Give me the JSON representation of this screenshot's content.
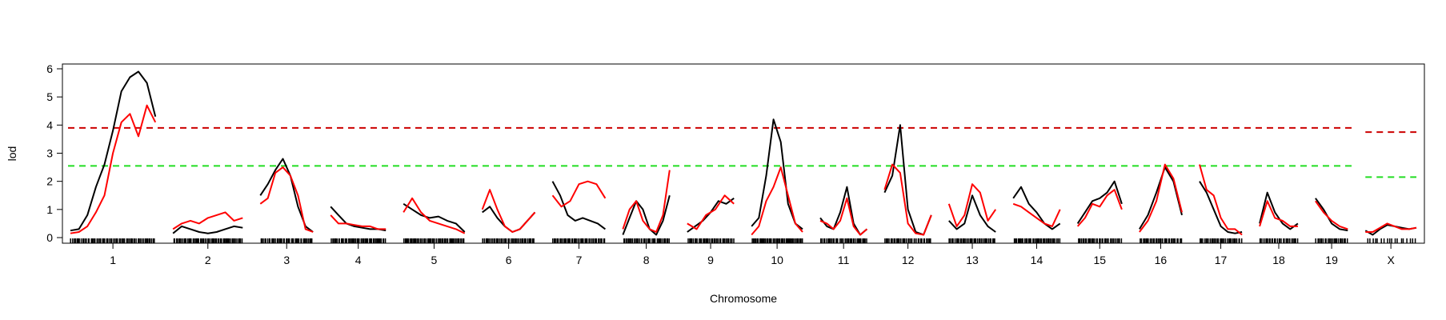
{
  "chart_data": {
    "type": "line",
    "title": "",
    "xlabel": "Chromosome",
    "ylabel": "lod",
    "ylim": [
      0,
      6
    ],
    "yticks": [
      0,
      1,
      2,
      3,
      4,
      5,
      6
    ],
    "ytick_labels": [
      "0",
      "1",
      "2",
      "3",
      "4",
      "5",
      "6"
    ],
    "grid": false,
    "legend": "none",
    "chromosomes": [
      {
        "label": "1",
        "length": 1.0
      },
      {
        "label": "2",
        "length": 0.82
      },
      {
        "label": "3",
        "length": 0.62
      },
      {
        "label": "4",
        "length": 0.65
      },
      {
        "label": "5",
        "length": 0.72
      },
      {
        "label": "6",
        "length": 0.62
      },
      {
        "label": "7",
        "length": 0.62
      },
      {
        "label": "8",
        "length": 0.55
      },
      {
        "label": "9",
        "length": 0.55
      },
      {
        "label": "10",
        "length": 0.6
      },
      {
        "label": "11",
        "length": 0.55
      },
      {
        "label": "12",
        "length": 0.55
      },
      {
        "label": "13",
        "length": 0.55
      },
      {
        "label": "14",
        "length": 0.55
      },
      {
        "label": "15",
        "length": 0.52
      },
      {
        "label": "16",
        "length": 0.5
      },
      {
        "label": "17",
        "length": 0.5
      },
      {
        "label": "18",
        "length": 0.45
      },
      {
        "label": "19",
        "length": 0.38
      },
      {
        "label": "X",
        "length": 0.6
      }
    ],
    "series": [
      {
        "name": "black",
        "color": "#000000",
        "values": [
          [
            0.25,
            0.3,
            0.8,
            1.8,
            2.6,
            3.8,
            5.2,
            5.7,
            5.9,
            5.5,
            4.3
          ],
          [
            0.15,
            0.4,
            0.3,
            0.2,
            0.15,
            0.2,
            0.3,
            0.4,
            0.35
          ],
          [
            1.5,
            1.9,
            2.4,
            2.8,
            2.2,
            1.1,
            0.4,
            0.2
          ],
          [
            1.1,
            0.8,
            0.5,
            0.4,
            0.35,
            0.3,
            0.3,
            0.25
          ],
          [
            1.2,
            1.0,
            0.8,
            0.7,
            0.75,
            0.6,
            0.5,
            0.2
          ],
          [
            0.9,
            1.1,
            0.7,
            0.4,
            0.2,
            0.3,
            0.6,
            0.9
          ],
          [
            2.0,
            1.5,
            0.8,
            0.6,
            0.7,
            0.6,
            0.5,
            0.3
          ],
          [
            0.1,
            0.7,
            1.3,
            1.0,
            0.3,
            0.1,
            0.6,
            1.5
          ],
          [
            0.2,
            0.4,
            0.6,
            0.9,
            1.3,
            1.2,
            1.4
          ],
          [
            0.4,
            0.7,
            2.2,
            4.2,
            3.4,
            1.2,
            0.5,
            0.3
          ],
          [
            0.7,
            0.4,
            0.3,
            0.9,
            1.8,
            0.5,
            0.1,
            0.3
          ],
          [
            1.6,
            2.2,
            4.0,
            1.0,
            0.2,
            0.1,
            0.8
          ],
          [
            0.6,
            0.3,
            0.5,
            1.5,
            0.8,
            0.4,
            0.2
          ],
          [
            1.4,
            1.8,
            1.2,
            0.9,
            0.5,
            0.3,
            0.5
          ],
          [
            0.5,
            0.9,
            1.3,
            1.4,
            1.6,
            2.0,
            1.2
          ],
          [
            0.3,
            0.8,
            1.6,
            2.5,
            2.0,
            0.8
          ],
          [
            2.0,
            1.6,
            1.0,
            0.4,
            0.2,
            0.15,
            0.2
          ],
          [
            0.5,
            1.6,
            0.9,
            0.5,
            0.3,
            0.5
          ],
          [
            1.4,
            1.0,
            0.5,
            0.3,
            0.25
          ],
          [
            0.25,
            0.1,
            0.3,
            0.45,
            0.4,
            0.35,
            0.3,
            0.35
          ]
        ]
      },
      {
        "name": "red",
        "color": "#ff0000",
        "values": [
          [
            0.15,
            0.2,
            0.4,
            0.9,
            1.5,
            3.0,
            4.1,
            4.4,
            3.6,
            4.7,
            4.1
          ],
          [
            0.3,
            0.5,
            0.6,
            0.5,
            0.7,
            0.8,
            0.9,
            0.6,
            0.7
          ],
          [
            1.2,
            1.4,
            2.3,
            2.5,
            2.2,
            1.5,
            0.3,
            0.2
          ],
          [
            0.8,
            0.5,
            0.5,
            0.45,
            0.4,
            0.4,
            0.3,
            0.3
          ],
          [
            0.9,
            1.4,
            0.9,
            0.6,
            0.5,
            0.4,
            0.3,
            0.15
          ],
          [
            1.0,
            1.7,
            1.0,
            0.4,
            0.2,
            0.3,
            0.6,
            0.9
          ],
          [
            1.5,
            1.1,
            1.3,
            1.9,
            2.0,
            1.9,
            1.4
          ],
          [
            0.3,
            1.0,
            1.3,
            0.6,
            0.3,
            0.2,
            0.8,
            2.4
          ],
          [
            0.5,
            0.3,
            0.8,
            1.0,
            1.5,
            1.2
          ],
          [
            0.1,
            0.4,
            1.3,
            1.8,
            2.5,
            1.5,
            0.5,
            0.2
          ],
          [
            0.6,
            0.5,
            0.3,
            0.6,
            1.4,
            0.4,
            0.1,
            0.3
          ],
          [
            1.7,
            2.6,
            2.3,
            0.5,
            0.15,
            0.1,
            0.8
          ],
          [
            1.2,
            0.4,
            0.8,
            1.9,
            1.6,
            0.6,
            1.0
          ],
          [
            1.2,
            1.1,
            0.9,
            0.7,
            0.5,
            0.4,
            1.0
          ],
          [
            0.4,
            0.7,
            1.2,
            1.1,
            1.5,
            1.7,
            1.0
          ],
          [
            0.2,
            0.6,
            1.3,
            2.6,
            2.1,
            0.9
          ],
          [
            2.6,
            1.7,
            1.5,
            0.7,
            0.3,
            0.3,
            0.1
          ],
          [
            0.4,
            1.3,
            0.7,
            0.6,
            0.4,
            0.4
          ],
          [
            1.3,
            0.9,
            0.6,
            0.4,
            0.3
          ],
          [
            0.2,
            0.2,
            0.35,
            0.5,
            0.4,
            0.3,
            0.3,
            0.35
          ]
        ]
      }
    ],
    "thresholds": [
      {
        "name": "red-threshold",
        "color": "#cc0000",
        "autosomes": 3.9,
        "X": 3.75
      },
      {
        "name": "green-threshold",
        "color": "#22dd22",
        "autosomes": 2.55,
        "X": 2.15
      }
    ],
    "marker_counts": [
      60,
      55,
      40,
      45,
      50,
      38,
      40,
      35,
      34,
      42,
      35,
      33,
      35,
      35,
      32,
      30,
      30,
      27,
      22,
      18
    ]
  }
}
